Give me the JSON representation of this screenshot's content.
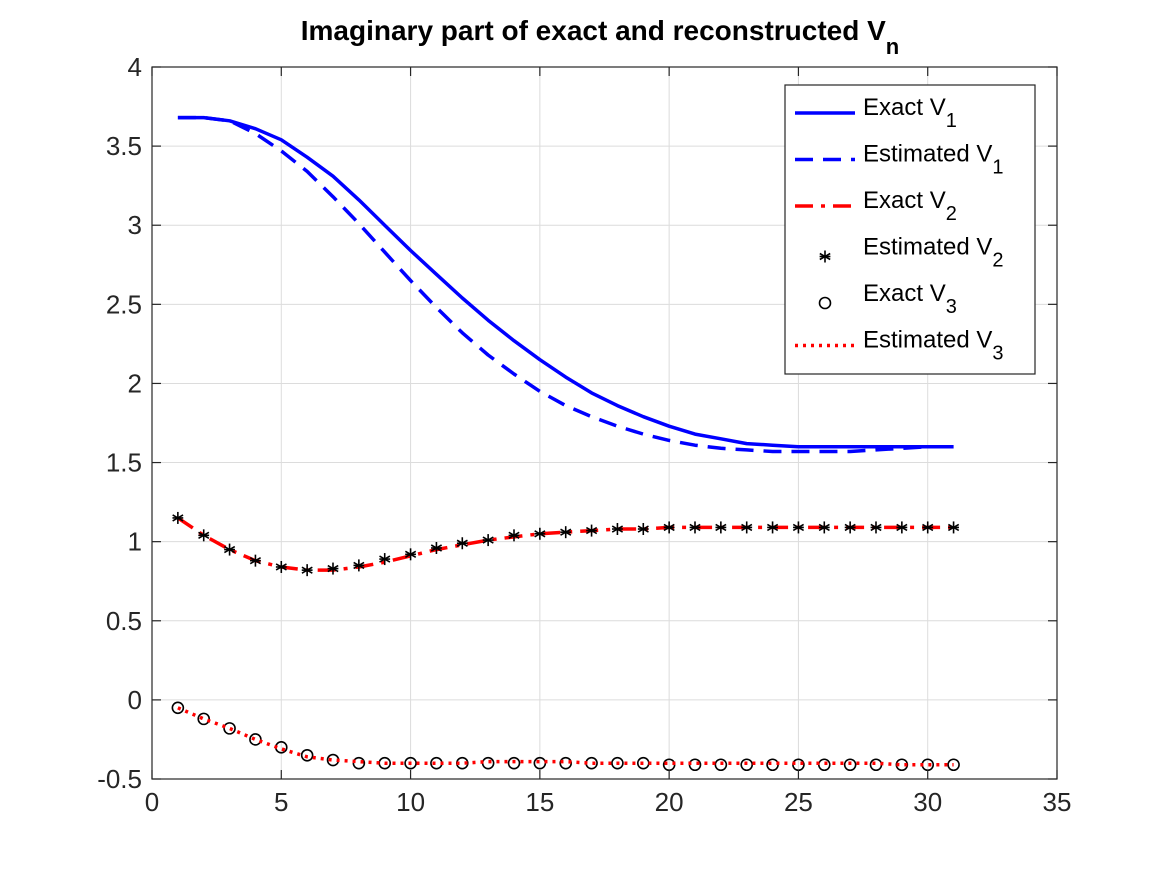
{
  "chart_data": {
    "type": "line",
    "title": "Imaginary part of exact and reconstructed V",
    "title_subscript": "n",
    "xlabel": "",
    "ylabel": "",
    "xlim": [
      0,
      35
    ],
    "ylim": [
      -0.5,
      4
    ],
    "xticks": [
      0,
      5,
      10,
      15,
      20,
      25,
      30,
      35
    ],
    "xtick_labels": [
      "0",
      "5",
      "10",
      "15",
      "20",
      "25",
      "30",
      "35"
    ],
    "yticks": [
      -0.5,
      0,
      0.5,
      1,
      1.5,
      2,
      2.5,
      3,
      3.5,
      4
    ],
    "ytick_labels": [
      "-0.5",
      "0",
      "0.5",
      "1",
      "1.5",
      "2",
      "2.5",
      "3",
      "3.5",
      "4"
    ],
    "grid": true,
    "legend_position": "top-right",
    "x": [
      1,
      2,
      3,
      4,
      5,
      6,
      7,
      8,
      9,
      10,
      11,
      12,
      13,
      14,
      15,
      16,
      17,
      18,
      19,
      20,
      21,
      22,
      23,
      24,
      25,
      26,
      27,
      28,
      29,
      30,
      31
    ],
    "series": [
      {
        "name": "Exact V",
        "sub": "1",
        "color": "#0000ff",
        "style": "solid",
        "marker": "none",
        "values": [
          3.68,
          3.68,
          3.66,
          3.61,
          3.54,
          3.43,
          3.31,
          3.16,
          3.0,
          2.84,
          2.69,
          2.54,
          2.4,
          2.27,
          2.15,
          2.04,
          1.94,
          1.86,
          1.79,
          1.73,
          1.68,
          1.65,
          1.62,
          1.61,
          1.6,
          1.6,
          1.6,
          1.6,
          1.6,
          1.6,
          1.6
        ]
      },
      {
        "name": "Estimated V",
        "sub": "1",
        "color": "#0000ff",
        "style": "dashed",
        "marker": "none",
        "values": [
          3.68,
          3.68,
          3.66,
          3.58,
          3.47,
          3.34,
          3.18,
          3.01,
          2.83,
          2.65,
          2.48,
          2.32,
          2.18,
          2.06,
          1.95,
          1.86,
          1.79,
          1.73,
          1.68,
          1.64,
          1.61,
          1.59,
          1.58,
          1.57,
          1.57,
          1.57,
          1.57,
          1.58,
          1.59,
          1.6,
          1.6
        ]
      },
      {
        "name": "Exact V",
        "sub": "2",
        "color": "#ff0000",
        "style": "dashdot",
        "marker": "none",
        "values": [
          1.15,
          1.04,
          0.95,
          0.88,
          0.84,
          0.82,
          0.82,
          0.84,
          0.87,
          0.91,
          0.95,
          0.98,
          1.01,
          1.03,
          1.05,
          1.06,
          1.07,
          1.08,
          1.08,
          1.09,
          1.09,
          1.09,
          1.09,
          1.09,
          1.09,
          1.09,
          1.09,
          1.09,
          1.09,
          1.09,
          1.09
        ]
      },
      {
        "name": "Estimated V",
        "sub": "2",
        "color": "#000000",
        "style": "none",
        "marker": "asterisk",
        "values": [
          1.15,
          1.04,
          0.95,
          0.88,
          0.84,
          0.82,
          0.83,
          0.85,
          0.89,
          0.92,
          0.96,
          0.99,
          1.01,
          1.04,
          1.05,
          1.06,
          1.07,
          1.08,
          1.08,
          1.09,
          1.09,
          1.09,
          1.09,
          1.09,
          1.09,
          1.09,
          1.09,
          1.09,
          1.09,
          1.09,
          1.09
        ]
      },
      {
        "name": "Exact V",
        "sub": "3",
        "color": "#000000",
        "style": "none",
        "marker": "circle",
        "values": [
          -0.05,
          -0.12,
          -0.18,
          -0.25,
          -0.3,
          -0.35,
          -0.38,
          -0.4,
          -0.4,
          -0.4,
          -0.4,
          -0.4,
          -0.4,
          -0.4,
          -0.4,
          -0.4,
          -0.4,
          -0.4,
          -0.4,
          -0.41,
          -0.41,
          -0.41,
          -0.41,
          -0.41,
          -0.41,
          -0.41,
          -0.41,
          -0.41,
          -0.41,
          -0.41,
          -0.41
        ]
      },
      {
        "name": "Estimated V",
        "sub": "3",
        "color": "#ff0000",
        "style": "dotted",
        "marker": "none",
        "values": [
          -0.05,
          -0.12,
          -0.18,
          -0.25,
          -0.31,
          -0.36,
          -0.38,
          -0.39,
          -0.4,
          -0.4,
          -0.4,
          -0.4,
          -0.39,
          -0.39,
          -0.39,
          -0.39,
          -0.4,
          -0.4,
          -0.4,
          -0.4,
          -0.4,
          -0.4,
          -0.4,
          -0.4,
          -0.4,
          -0.4,
          -0.4,
          -0.4,
          -0.41,
          -0.41,
          -0.41
        ]
      }
    ]
  }
}
